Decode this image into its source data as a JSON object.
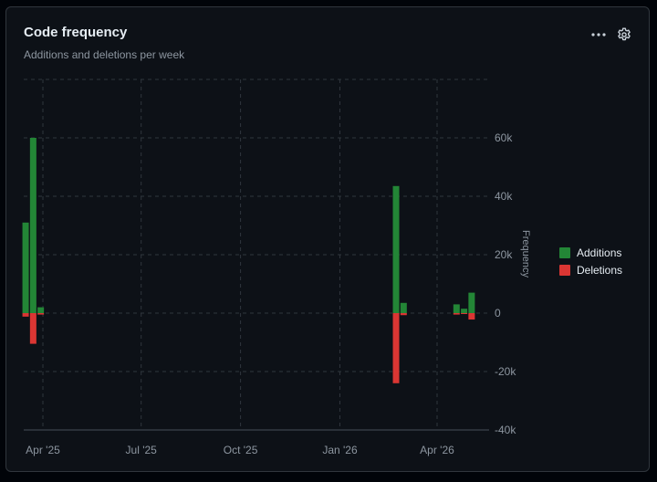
{
  "header": {
    "title": "Code frequency",
    "subtitle": "Additions and deletions per week"
  },
  "icons": {
    "more": "kebab-horizontal-icon",
    "settings": "gear-icon"
  },
  "colors": {
    "additions": "#238636",
    "deletions": "#da3633",
    "grid": "#30363d",
    "text": "#8d96a0"
  },
  "chart_data": {
    "type": "bar",
    "title": "",
    "xlabel": "",
    "ylabel": "Frequency",
    "x_ticks": [
      "Apr '25",
      "Jul '25",
      "Oct '25",
      "Jan '26",
      "Apr '26"
    ],
    "y_ticks": [
      "60k",
      "40k",
      "20k",
      "0",
      "-20k",
      "-40k"
    ],
    "ylim": [
      -40000,
      60000
    ],
    "grid": true,
    "legend_position": "right",
    "series": [
      {
        "name": "Additions",
        "points": [
          {
            "week": "2025-03-16",
            "value": 31000
          },
          {
            "week": "2025-03-23",
            "value": 60000
          },
          {
            "week": "2025-03-30",
            "value": 2000
          },
          {
            "week": "2026-02-22",
            "value": 43500
          },
          {
            "week": "2026-03-01",
            "value": 3500
          },
          {
            "week": "2026-04-19",
            "value": 3000
          },
          {
            "week": "2026-04-26",
            "value": 1500
          },
          {
            "week": "2026-05-03",
            "value": 7000
          }
        ]
      },
      {
        "name": "Deletions",
        "points": [
          {
            "week": "2025-03-16",
            "value": -1200
          },
          {
            "week": "2025-03-23",
            "value": -10500
          },
          {
            "week": "2025-03-30",
            "value": -500
          },
          {
            "week": "2026-02-22",
            "value": -24000
          },
          {
            "week": "2026-03-01",
            "value": -700
          },
          {
            "week": "2026-04-19",
            "value": -500
          },
          {
            "week": "2026-04-26",
            "value": -300
          },
          {
            "week": "2026-05-03",
            "value": -2200
          }
        ]
      }
    ]
  }
}
